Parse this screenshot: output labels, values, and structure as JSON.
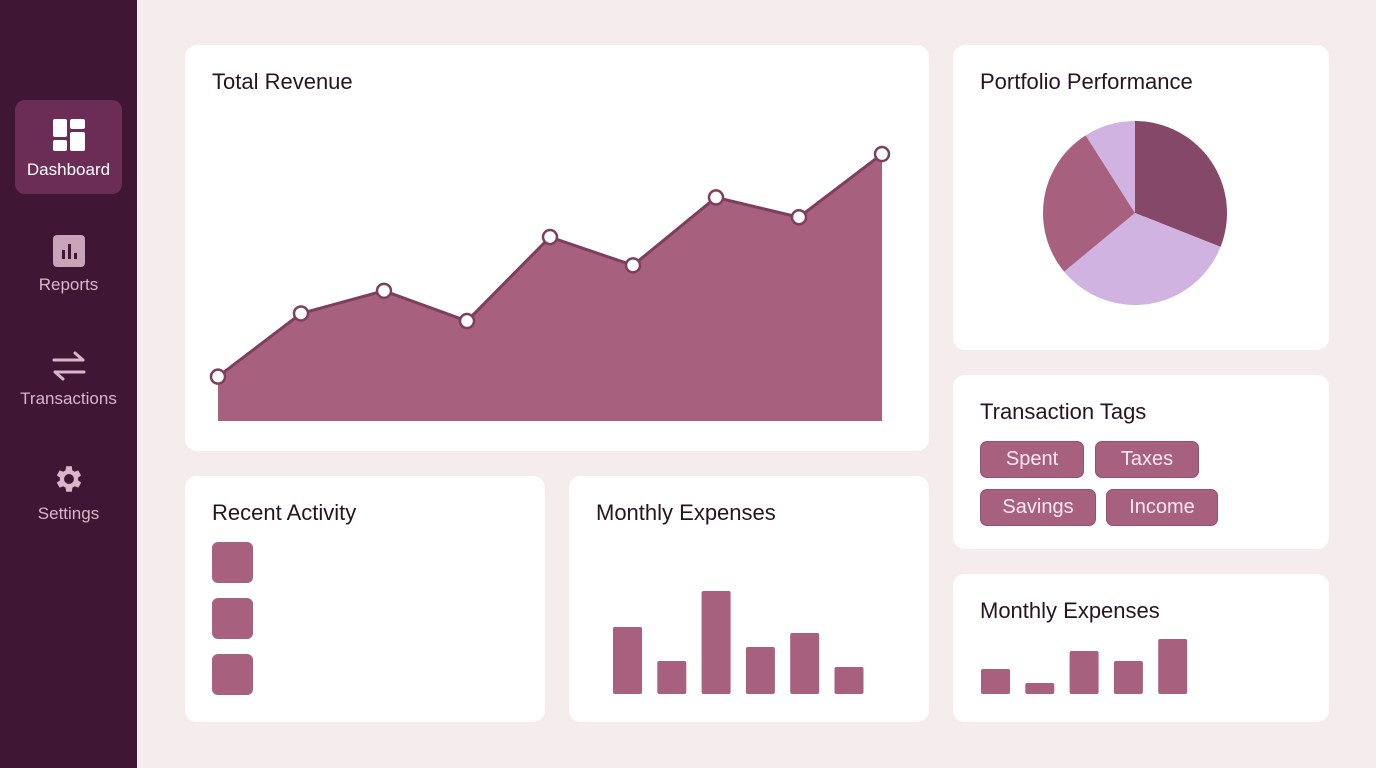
{
  "sidebar": {
    "items": [
      {
        "label": "Dashboard",
        "icon": "dashboard-icon",
        "active": true
      },
      {
        "label": "Reports",
        "icon": "bar-chart-icon"
      },
      {
        "label": "Transactions",
        "icon": "swap-arrows-icon"
      },
      {
        "label": "Settings",
        "icon": "gear-icon"
      }
    ]
  },
  "revenue": {
    "title": "Total Revenue"
  },
  "portfolio": {
    "title": "Portfolio Performance"
  },
  "tags": {
    "title": "Transaction Tags",
    "items": [
      "Spent",
      "Taxes",
      "Savings",
      "Income"
    ]
  },
  "activity": {
    "title": "Recent Activity"
  },
  "expenses": {
    "title": "Monthly Expenses"
  },
  "expenses_small": {
    "title": "Monthly Expenses"
  },
  "colors": {
    "accent": "#a8607f",
    "dark": "#854868",
    "lavender": "#d1b3e2",
    "sidebar": "#3f1634"
  },
  "chart_data": [
    {
      "type": "area",
      "title": "Total Revenue",
      "values": [
        47,
        114,
        138,
        106,
        195,
        165,
        237,
        216,
        283
      ],
      "ylim": [
        0,
        300
      ],
      "grid": false
    },
    {
      "type": "pie",
      "title": "Portfolio Performance",
      "values": [
        31,
        33,
        27,
        9
      ],
      "colors": [
        "#854868",
        "#d1b3e2",
        "#a8607f",
        "#d1b3e2"
      ]
    },
    {
      "type": "bar",
      "title": "Monthly Expenses",
      "values": [
        67,
        33,
        103,
        47,
        61,
        27
      ],
      "ylim": [
        0,
        110
      ]
    },
    {
      "type": "bar",
      "title": "Monthly Expenses",
      "values": [
        25,
        11,
        43,
        33,
        55
      ],
      "ylim": [
        0,
        110
      ]
    }
  ]
}
